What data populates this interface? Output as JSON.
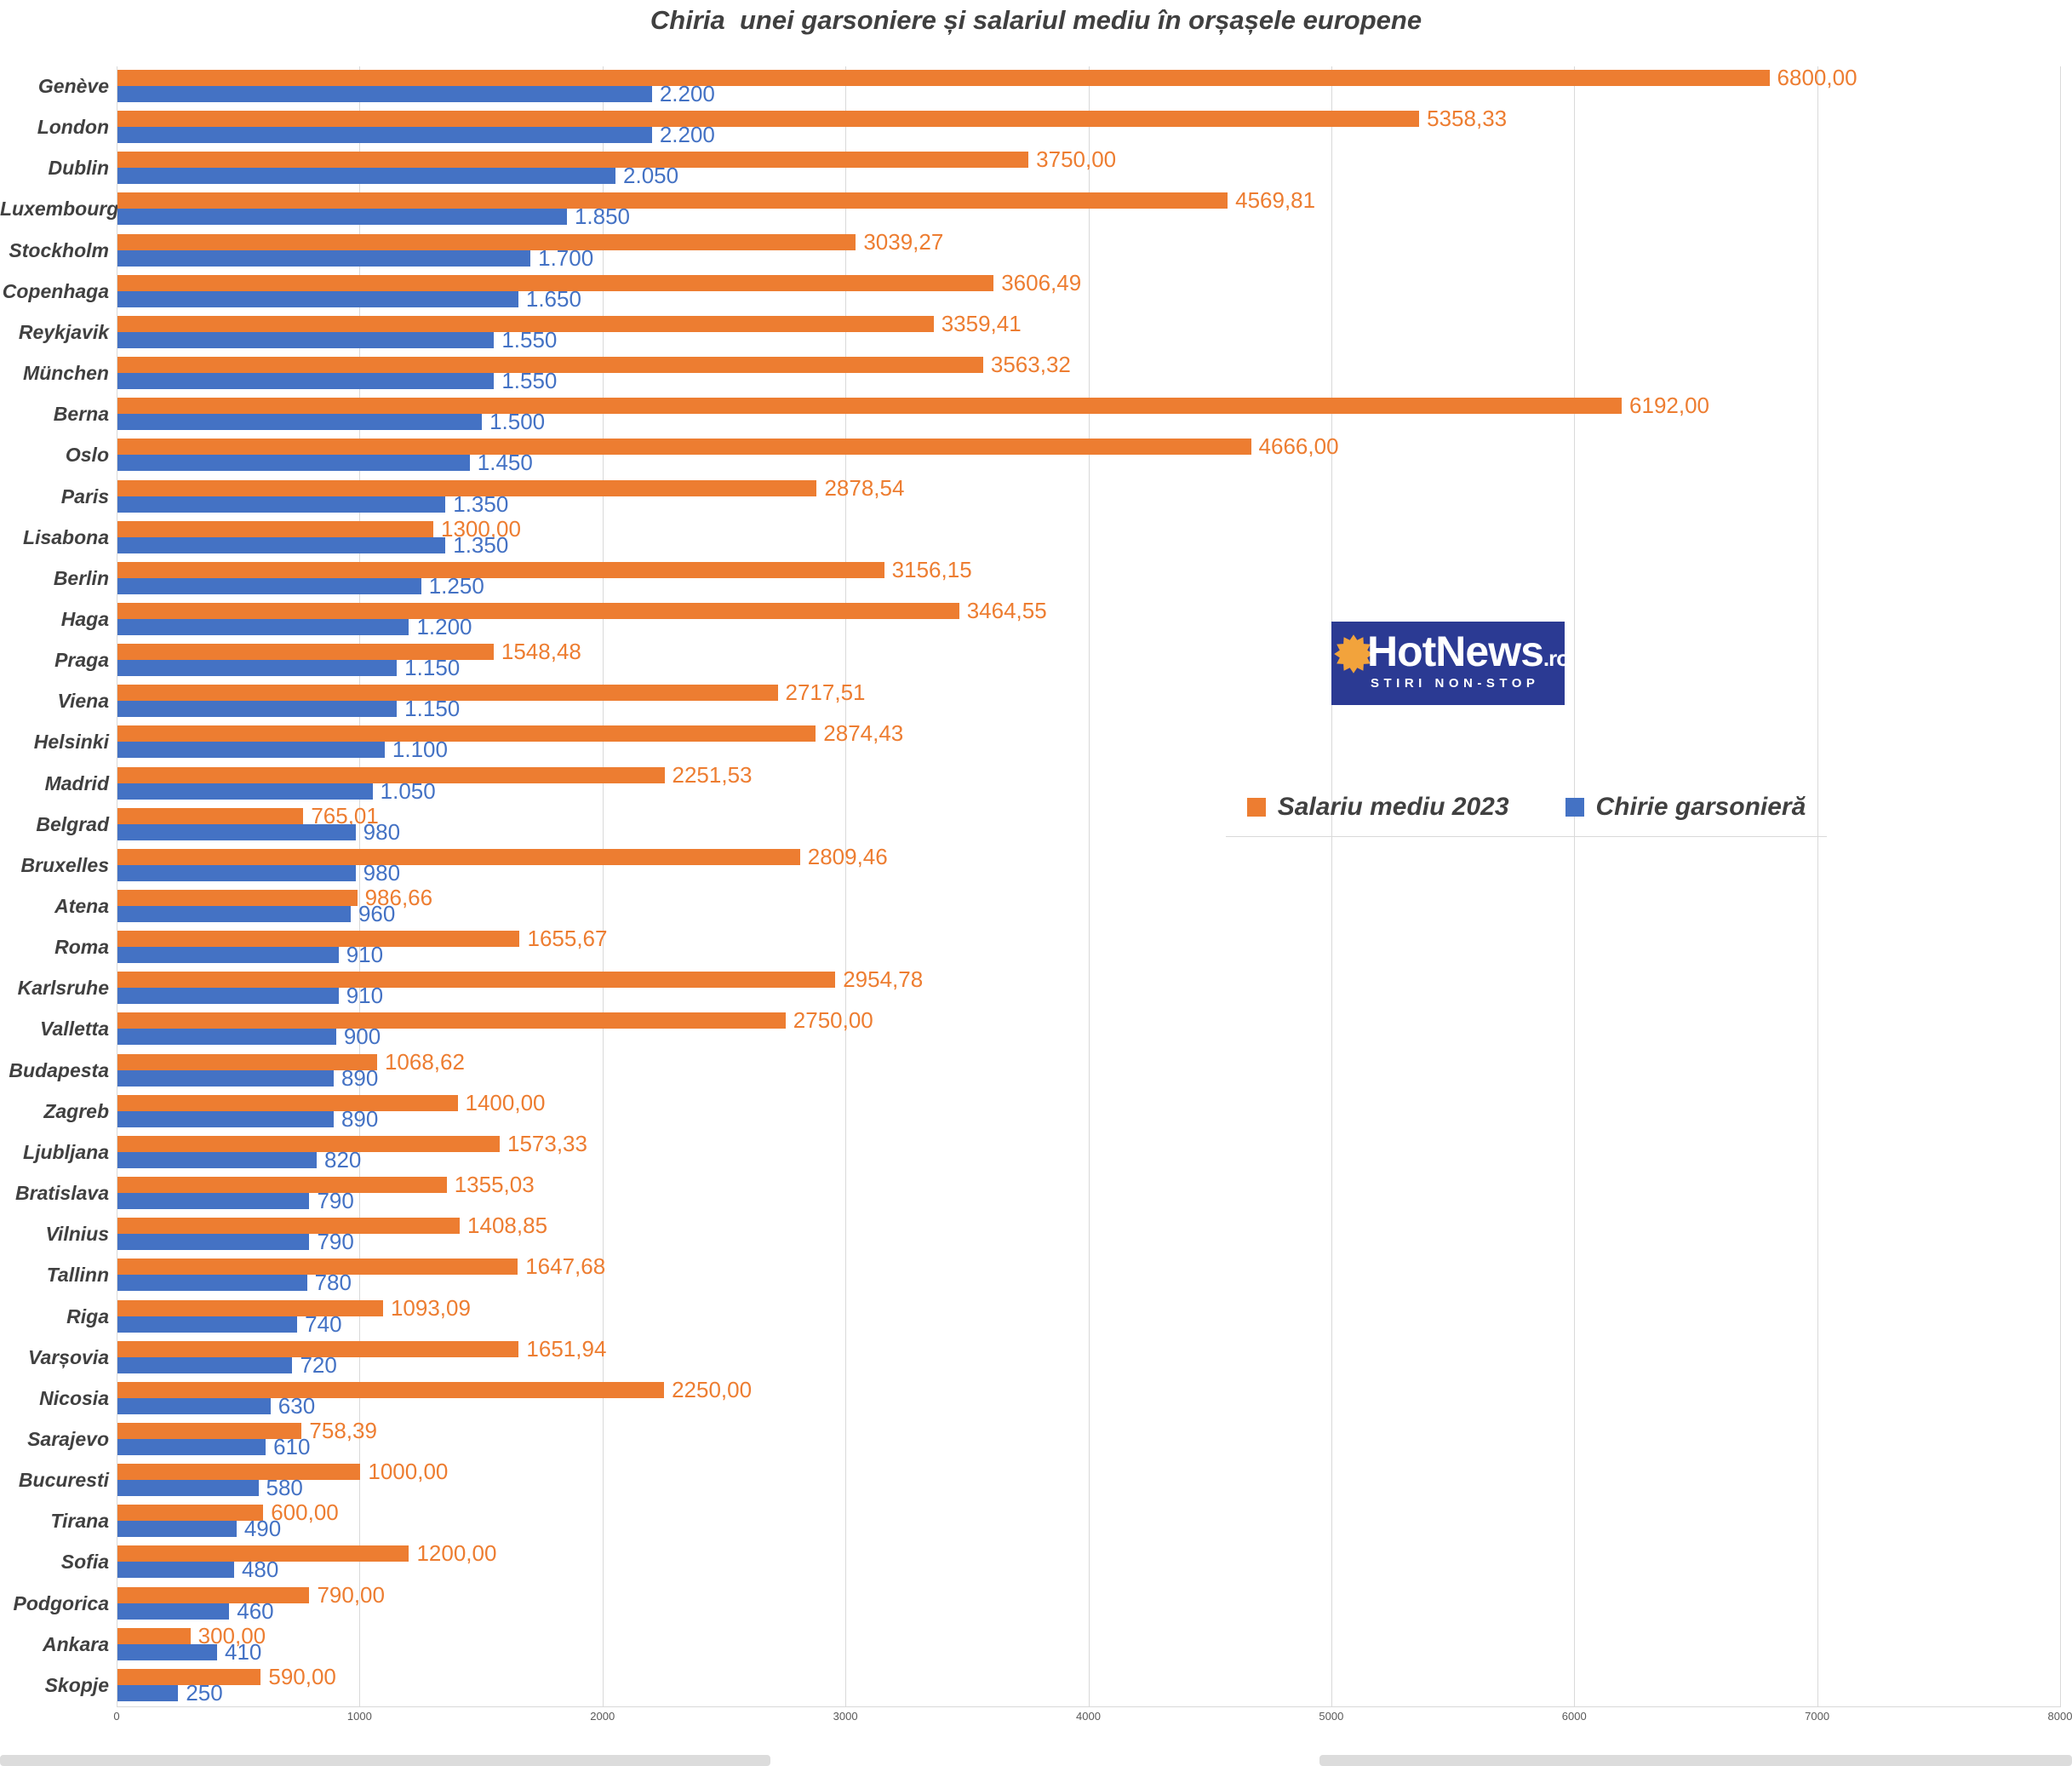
{
  "title": "Chiria  unei garsoniere și salariul mediu în orșașele europene",
  "axis": {
    "ticks": [
      "0",
      "1000",
      "2000",
      "3000",
      "4000",
      "5000",
      "6000",
      "7000",
      "8000"
    ]
  },
  "legend": {
    "items": [
      {
        "label": "Salariu mediu 2023",
        "color": "#ED7D31"
      },
      {
        "label": "Chirie garsonieră",
        "color": "#4472C4"
      }
    ]
  },
  "logo": {
    "brand": "HotNews",
    "domain": ".ro",
    "tagline": "STIRI NON-STOP",
    "background": "#2B3A93",
    "sun_color": "#F2A33C"
  },
  "chart_data": {
    "type": "bar",
    "orientation": "horizontal",
    "title": "Chiria  unei garsoniere și salariul mediu în orșașele europene",
    "xlim": [
      0,
      8000
    ],
    "grid": "vertical",
    "legend_position": "middle-right",
    "categories": [
      "Genève",
      "London",
      "Dublin",
      "Luxembourg",
      "Stockholm",
      "Copenhaga",
      "Reykjavik",
      "München",
      "Berna",
      "Oslo",
      "Paris",
      "Lisabona",
      "Berlin",
      "Haga",
      "Praga",
      "Viena",
      "Helsinki",
      "Madrid",
      "Belgrad",
      "Bruxelles",
      "Atena",
      "Roma",
      "Karlsruhe",
      "Valletta",
      "Budapesta",
      "Zagreb",
      "Ljubljana",
      "Bratislava",
      "Vilnius",
      "Tallinn",
      "Riga",
      "Varșovia",
      "Nicosia",
      "Sarajevo",
      "Bucuresti",
      "Tirana",
      "Sofia",
      "Podgorica",
      "Ankara",
      "Skopje"
    ],
    "series": [
      {
        "name": "Salariu mediu 2023",
        "color": "#ED7D31",
        "values": [
          6800,
          5358.33,
          3750,
          4569.81,
          3039.27,
          3606.49,
          3359.41,
          3563.32,
          6192,
          4666,
          2878.54,
          1300,
          3156.15,
          3464.55,
          1548.48,
          2717.51,
          2874.43,
          2251.53,
          765.01,
          2809.46,
          986.66,
          1655.67,
          2954.78,
          2750,
          1068.62,
          1400,
          1573.33,
          1355.03,
          1408.85,
          1647.68,
          1093.09,
          1651.94,
          2250,
          758.39,
          1000,
          600,
          1200,
          790,
          300,
          590
        ],
        "labels": [
          "6800,00",
          "5358,33",
          "3750,00",
          "4569,81",
          "3039,27",
          "3606,49",
          "3359,41",
          "3563,32",
          "6192,00",
          "4666,00",
          "2878,54",
          "1300,00",
          "3156,15",
          "3464,55",
          "1548,48",
          "2717,51",
          "2874,43",
          "2251,53",
          "765,01",
          "2809,46",
          "986,66",
          "1655,67",
          "2954,78",
          "2750,00",
          "1068,62",
          "1400,00",
          "1573,33",
          "1355,03",
          "1408,85",
          "1647,68",
          "1093,09",
          "1651,94",
          "2250,00",
          "758,39",
          "1000,00",
          "600,00",
          "1200,00",
          "790,00",
          "300,00",
          "590,00"
        ]
      },
      {
        "name": "Chirie garsonieră",
        "color": "#4472C4",
        "values": [
          2200,
          2200,
          2050,
          1850,
          1700,
          1650,
          1550,
          1550,
          1500,
          1450,
          1350,
          1350,
          1250,
          1200,
          1150,
          1150,
          1100,
          1050,
          980,
          980,
          960,
          910,
          910,
          900,
          890,
          890,
          820,
          790,
          790,
          780,
          740,
          720,
          630,
          610,
          580,
          490,
          480,
          460,
          410,
          250
        ],
        "labels": [
          "2.200",
          "2.200",
          "2.050",
          "1.850",
          "1.700",
          "1.650",
          "1.550",
          "1.550",
          "1.500",
          "1.450",
          "1.350",
          "1.350",
          "1.250",
          "1.200",
          "1.150",
          "1.150",
          "1.100",
          "1.050",
          "980",
          "980",
          "960",
          "910",
          "910",
          "900",
          "890",
          "890",
          "820",
          "790",
          "790",
          "780",
          "740",
          "720",
          "630",
          "610",
          "580",
          "490",
          "480",
          "460",
          "410",
          "250"
        ]
      }
    ]
  }
}
